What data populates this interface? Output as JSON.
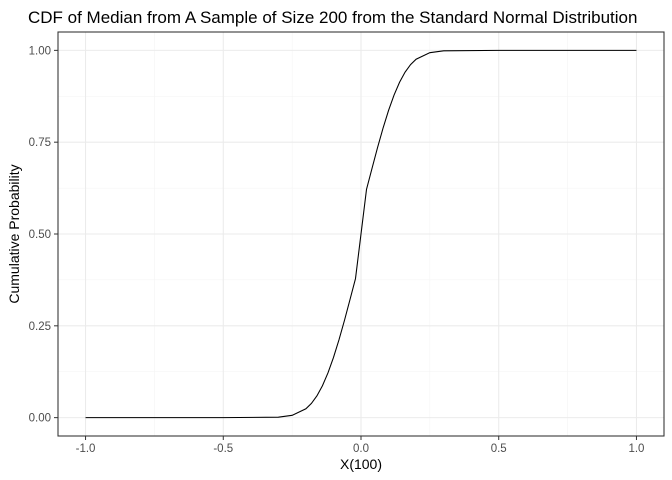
{
  "chart_data": {
    "type": "line",
    "title": "CDF of Median from A Sample of Size 200 from the Standard Normal Distribution",
    "xlabel": "X(100)",
    "ylabel": "Cumulative Probability",
    "xlim": [
      -1.0,
      1.0
    ],
    "ylim": [
      0.0,
      1.0
    ],
    "x_ticks": [
      -1.0,
      -0.5,
      0.0,
      0.5,
      1.0
    ],
    "x_tick_labels": [
      "-1.0",
      "-0.5",
      "0.0",
      "0.5",
      "1.0"
    ],
    "y_ticks": [
      0.0,
      0.25,
      0.5,
      0.75,
      1.0
    ],
    "y_tick_labels": [
      "0.00",
      "0.25",
      "0.50",
      "0.75",
      "1.00"
    ],
    "grid": true,
    "legend": "none",
    "line_color": "#000000",
    "series": [
      {
        "x": [
          -1.0,
          -0.5,
          -0.3,
          -0.25,
          -0.2,
          -0.18,
          -0.16,
          -0.14,
          -0.12,
          -0.1,
          -0.08,
          -0.06,
          -0.04,
          -0.02,
          0.0,
          0.02,
          0.04,
          0.06,
          0.08,
          0.1,
          0.12,
          0.14,
          0.16,
          0.18,
          0.2,
          0.25,
          0.3,
          0.5,
          1.0
        ],
        "y": [
          0.0,
          0.0,
          0.0012,
          0.0063,
          0.0241,
          0.0388,
          0.0594,
          0.0869,
          0.1217,
          0.1636,
          0.2118,
          0.2649,
          0.3212,
          0.3785,
          0.5,
          0.6215,
          0.6788,
          0.7351,
          0.7882,
          0.8364,
          0.8783,
          0.9131,
          0.9406,
          0.9612,
          0.9759,
          0.9937,
          0.9988,
          1.0,
          1.0
        ]
      }
    ]
  }
}
